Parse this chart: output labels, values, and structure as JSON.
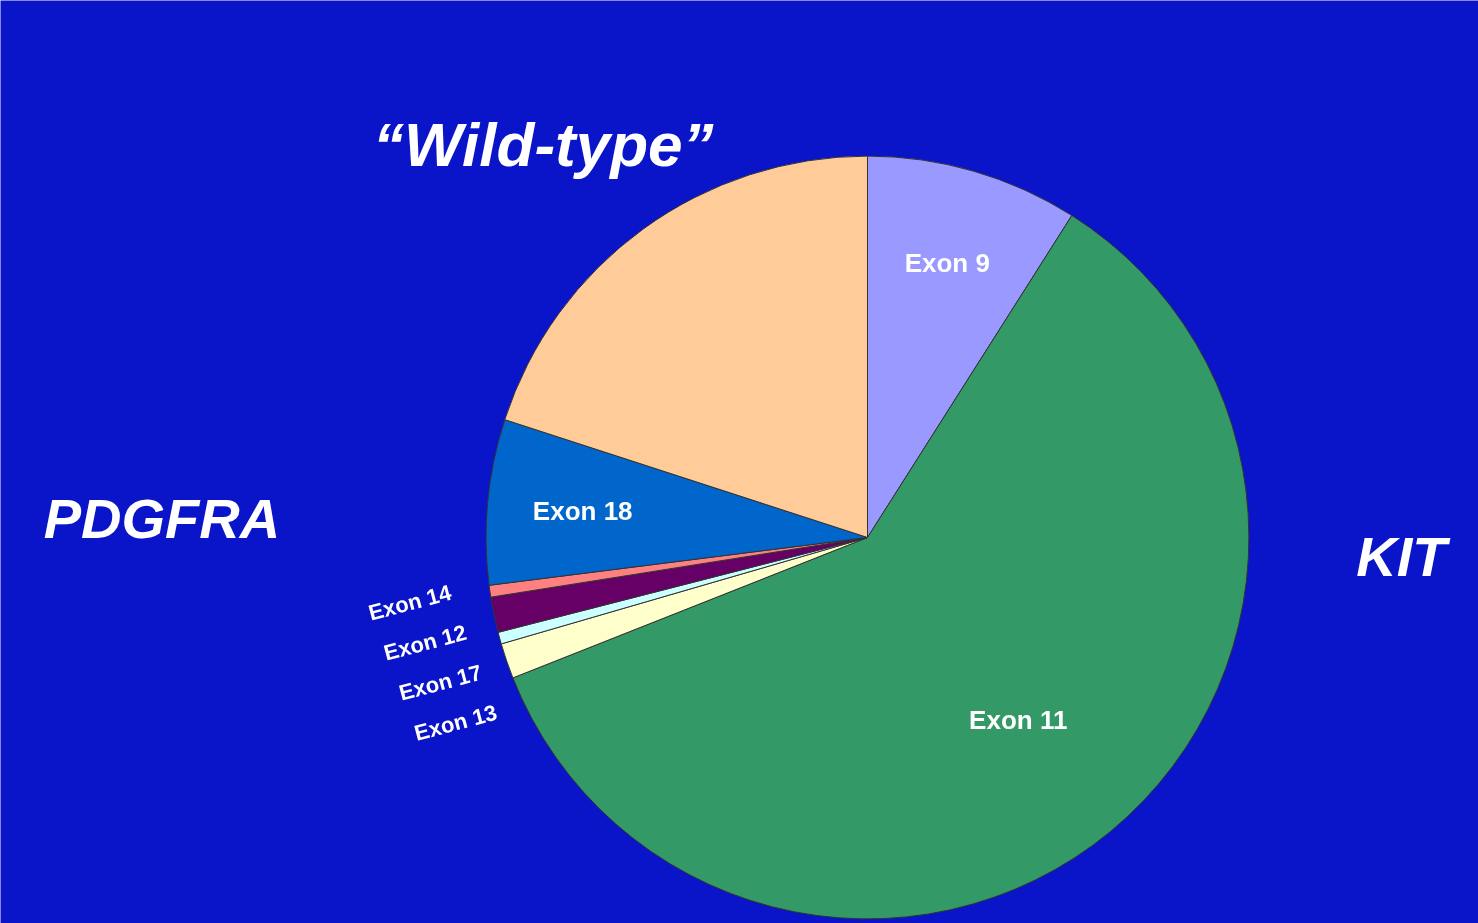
{
  "chart_data": {
    "type": "pie",
    "categories": [
      "Exon 9",
      "Exon 11",
      "Exon 13",
      "Exon 17",
      "Exon 12",
      "Exon 14",
      "Exon 18",
      null
    ],
    "values": [
      9,
      60,
      1.5,
      0.5,
      1.5,
      0.5,
      7,
      20
    ],
    "colors": [
      "#9999ff",
      "#339966",
      "#ffffcc",
      "#ccffff",
      "#660066",
      "#ff8080",
      "#0066cc",
      "#ffcc99"
    ],
    "annotations": [
      "“Wild-type”",
      "PDGFRA",
      "KIT"
    ]
  }
}
